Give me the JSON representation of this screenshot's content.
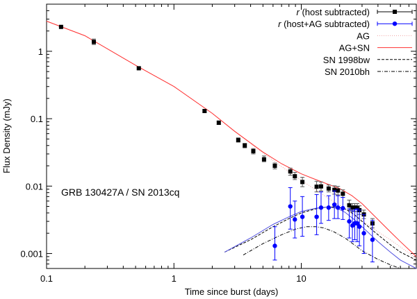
{
  "chart_data": {
    "type": "scatter",
    "xlabel": "Time since burst (days)",
    "ylabel": "Flux Density (mJy)",
    "xscale": "log",
    "yscale": "log",
    "xlim": [
      0.1,
      80
    ],
    "ylim": [
      0.0006,
      5
    ],
    "grid": false,
    "legend_position": "top-right",
    "annotation": "GRB 130427A / SN 2013cq",
    "x_ticks": [
      {
        "value": 0.1,
        "label": "0.1"
      },
      {
        "value": 1,
        "label": "1"
      },
      {
        "value": 10,
        "label": "10"
      }
    ],
    "y_ticks": [
      {
        "value": 0.001,
        "label": "0.001"
      },
      {
        "value": 0.01,
        "label": "0.01"
      },
      {
        "value": 0.1,
        "label": "0.1"
      },
      {
        "value": 1,
        "label": "1"
      }
    ],
    "legend": [
      {
        "label_prefix": "r",
        "label": " (host subtracted)",
        "kind": "errorbar",
        "color": "#000000",
        "marker": "square"
      },
      {
        "label_prefix": "r",
        "label": " (host+AG subtracted)",
        "kind": "errorbar",
        "color": "#0000ff",
        "marker": "circle"
      },
      {
        "label_prefix": "",
        "label": "AG",
        "kind": "line",
        "color": "#f0a0a0",
        "dash": "1,2"
      },
      {
        "label_prefix": "",
        "label": "AG+SN",
        "kind": "line",
        "color": "#ff3030",
        "dash": ""
      },
      {
        "label_prefix": "",
        "label": "SN 1998bw",
        "kind": "line",
        "color": "#000000",
        "dash": "4,2"
      },
      {
        "label_prefix": "",
        "label": "SN 2010bh",
        "kind": "line",
        "color": "#000000",
        "dash": "5,2,1,2"
      }
    ],
    "series": [
      {
        "name": "r (host subtracted)",
        "color": "#000000",
        "marker": "square",
        "points": [
          {
            "x": 0.13,
            "y": 2.3,
            "ylo": 2.3,
            "yhi": 2.3
          },
          {
            "x": 0.235,
            "y": 1.38,
            "ylo": 1.26,
            "yhi": 1.52
          },
          {
            "x": 0.53,
            "y": 0.56,
            "ylo": 0.54,
            "yhi": 0.58
          },
          {
            "x": 1.74,
            "y": 0.13,
            "ylo": 0.125,
            "yhi": 0.135
          },
          {
            "x": 2.25,
            "y": 0.087,
            "ylo": 0.082,
            "yhi": 0.093
          },
          {
            "x": 3.2,
            "y": 0.048,
            "ylo": 0.045,
            "yhi": 0.052
          },
          {
            "x": 3.6,
            "y": 0.04,
            "ylo": 0.037,
            "yhi": 0.043
          },
          {
            "x": 4.2,
            "y": 0.033,
            "ylo": 0.03,
            "yhi": 0.036
          },
          {
            "x": 5.1,
            "y": 0.025,
            "ylo": 0.023,
            "yhi": 0.028
          },
          {
            "x": 6.2,
            "y": 0.02,
            "ylo": 0.018,
            "yhi": 0.022
          },
          {
            "x": 8.2,
            "y": 0.0165,
            "ylo": 0.0145,
            "yhi": 0.0185
          },
          {
            "x": 8.9,
            "y": 0.014,
            "ylo": 0.0125,
            "yhi": 0.016
          },
          {
            "x": 10.2,
            "y": 0.0115,
            "ylo": 0.0098,
            "yhi": 0.0135
          },
          {
            "x": 13.2,
            "y": 0.0098,
            "ylo": 0.0082,
            "yhi": 0.0118
          },
          {
            "x": 14.3,
            "y": 0.0099,
            "ylo": 0.0085,
            "yhi": 0.0115
          },
          {
            "x": 16.4,
            "y": 0.0092,
            "ylo": 0.0082,
            "yhi": 0.0104
          },
          {
            "x": 18.2,
            "y": 0.0088,
            "ylo": 0.0076,
            "yhi": 0.0101
          },
          {
            "x": 19.4,
            "y": 0.0086,
            "ylo": 0.0074,
            "yhi": 0.0099
          },
          {
            "x": 21.2,
            "y": 0.0077,
            "ylo": 0.0068,
            "yhi": 0.0088
          },
          {
            "x": 23.8,
            "y": 0.0052,
            "ylo": 0.0044,
            "yhi": 0.0062
          },
          {
            "x": 25.2,
            "y": 0.0048,
            "ylo": 0.0042,
            "yhi": 0.0055
          },
          {
            "x": 26.3,
            "y": 0.0048,
            "ylo": 0.0042,
            "yhi": 0.0055
          },
          {
            "x": 27.5,
            "y": 0.0048,
            "ylo": 0.0042,
            "yhi": 0.0055
          },
          {
            "x": 28.6,
            "y": 0.0044,
            "ylo": 0.0038,
            "yhi": 0.0051
          },
          {
            "x": 31.0,
            "y": 0.0038,
            "ylo": 0.0033,
            "yhi": 0.0044
          },
          {
            "x": 36.2,
            "y": 0.0028,
            "ylo": 0.0024,
            "yhi": 0.0033
          }
        ]
      },
      {
        "name": "r (host+AG subtracted)",
        "color": "#0000ff",
        "marker": "circle",
        "points": [
          {
            "x": 6.2,
            "y": 0.0013,
            "ylo": 0.0008,
            "yhi": 0.0025
          },
          {
            "x": 8.2,
            "y": 0.005,
            "ylo": 0.0023,
            "yhi": 0.0095
          },
          {
            "x": 8.9,
            "y": 0.0032,
            "ylo": 0.0017,
            "yhi": 0.006
          },
          {
            "x": 10.2,
            "y": 0.0035,
            "ylo": 0.0018,
            "yhi": 0.007
          },
          {
            "x": 13.2,
            "y": 0.0035,
            "ylo": 0.0019,
            "yhi": 0.0075
          },
          {
            "x": 14.3,
            "y": 0.0048,
            "ylo": 0.0028,
            "yhi": 0.0082
          },
          {
            "x": 16.4,
            "y": 0.0048,
            "ylo": 0.0031,
            "yhi": 0.0072
          },
          {
            "x": 18.2,
            "y": 0.0053,
            "ylo": 0.0033,
            "yhi": 0.0085
          },
          {
            "x": 19.4,
            "y": 0.0048,
            "ylo": 0.0033,
            "yhi": 0.0072
          },
          {
            "x": 21.2,
            "y": 0.0047,
            "ylo": 0.0032,
            "yhi": 0.0068
          },
          {
            "x": 23.8,
            "y": 0.003,
            "ylo": 0.0017,
            "yhi": 0.0046
          },
          {
            "x": 25.2,
            "y": 0.0026,
            "ylo": 0.0015,
            "yhi": 0.0043
          },
          {
            "x": 26.3,
            "y": 0.0028,
            "ylo": 0.0016,
            "yhi": 0.0045
          },
          {
            "x": 27.5,
            "y": 0.0028,
            "ylo": 0.0015,
            "yhi": 0.0046
          },
          {
            "x": 28.6,
            "y": 0.0025,
            "ylo": 0.0013,
            "yhi": 0.0044
          },
          {
            "x": 31.0,
            "y": 0.002,
            "ylo": 0.001,
            "yhi": 0.0038
          },
          {
            "x": 36.2,
            "y": 0.0016,
            "ylo": 0.00075,
            "yhi": 0.0031
          }
        ]
      }
    ],
    "curves": [
      {
        "name": "AG",
        "color": "#f0a0a0",
        "dash": "1,2",
        "points": [
          [
            0.1,
            2.8
          ],
          [
            0.2,
            1.7
          ],
          [
            0.5,
            0.62
          ],
          [
            1,
            0.3
          ],
          [
            2,
            0.12
          ],
          [
            3,
            0.065
          ],
          [
            5,
            0.031
          ],
          [
            7,
            0.0195
          ],
          [
            10,
            0.0122
          ],
          [
            15,
            0.0073
          ],
          [
            20,
            0.0052
          ],
          [
            30,
            0.0031
          ],
          [
            40,
            0.0021
          ],
          [
            50,
            0.0016
          ],
          [
            60,
            0.00125
          ],
          [
            80,
            0.00085
          ]
        ]
      },
      {
        "name": "AG+SN",
        "color": "#ff3030",
        "dash": "",
        "points": [
          [
            0.1,
            2.8
          ],
          [
            0.2,
            1.7
          ],
          [
            0.5,
            0.62
          ],
          [
            1,
            0.3
          ],
          [
            2,
            0.12
          ],
          [
            3,
            0.065
          ],
          [
            5,
            0.032
          ],
          [
            7,
            0.0215
          ],
          [
            10,
            0.0152
          ],
          [
            13,
            0.0125
          ],
          [
            17,
            0.0103
          ],
          [
            20,
            0.0092
          ],
          [
            25,
            0.0072
          ],
          [
            30,
            0.0055
          ],
          [
            40,
            0.0032
          ],
          [
            50,
            0.0021
          ],
          [
            60,
            0.0015
          ],
          [
            80,
            0.0009
          ]
        ]
      },
      {
        "name": "SN 1998bw",
        "color": "#000000",
        "dash": "4,2",
        "points": [
          [
            2.5,
            0.00105
          ],
          [
            4,
            0.0016
          ],
          [
            6,
            0.0025
          ],
          [
            8,
            0.0033
          ],
          [
            10,
            0.004
          ],
          [
            13,
            0.0046
          ],
          [
            16,
            0.0049
          ],
          [
            19,
            0.0049
          ],
          [
            22,
            0.0046
          ],
          [
            26,
            0.0038
          ],
          [
            30,
            0.003
          ],
          [
            40,
            0.0019
          ],
          [
            50,
            0.00135
          ],
          [
            60,
            0.00105
          ],
          [
            80,
            0.0008
          ]
        ]
      },
      {
        "name": "blue-model",
        "color": "#5050e0",
        "dash": "",
        "points": [
          [
            2.5,
            0.00105
          ],
          [
            4,
            0.0017
          ],
          [
            6,
            0.0027
          ],
          [
            8,
            0.0035
          ],
          [
            10,
            0.0042
          ],
          [
            13,
            0.0047
          ],
          [
            16,
            0.0049
          ],
          [
            19,
            0.0047
          ],
          [
            22,
            0.0041
          ],
          [
            26,
            0.0032
          ],
          [
            30,
            0.0025
          ],
          [
            40,
            0.0015
          ],
          [
            50,
            0.00105
          ],
          [
            60,
            0.0008
          ],
          [
            80,
            0.0006
          ]
        ]
      },
      {
        "name": "SN 2010bh",
        "color": "#000000",
        "dash": "5,2,1,2",
        "points": [
          [
            3.5,
            0.00095
          ],
          [
            5,
            0.0014
          ],
          [
            7,
            0.0019
          ],
          [
            9,
            0.0023
          ],
          [
            11,
            0.0025
          ],
          [
            13,
            0.0025
          ],
          [
            15,
            0.0024
          ],
          [
            18,
            0.0021
          ],
          [
            22,
            0.0017
          ],
          [
            26,
            0.00135
          ],
          [
            30,
            0.0011
          ],
          [
            40,
            0.00082
          ],
          [
            50,
            0.00068
          ],
          [
            60,
            0.0006
          ]
        ]
      }
    ]
  }
}
